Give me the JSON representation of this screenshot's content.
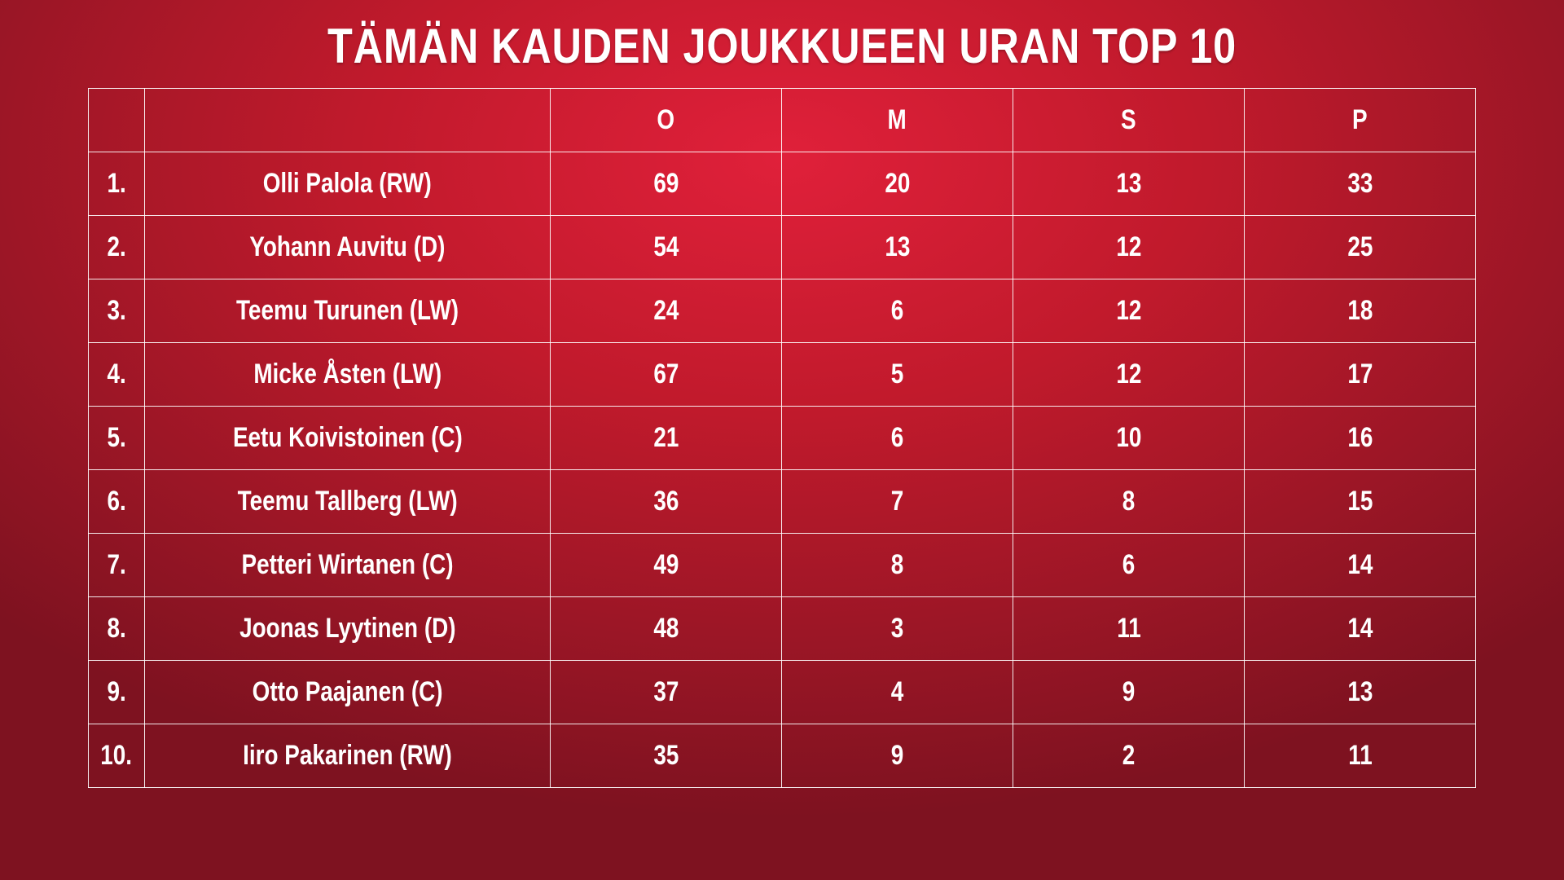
{
  "title": "TÄMÄN KAUDEN JOUKKUEEN URAN TOP 10",
  "table": {
    "columns": [
      "",
      "",
      "O",
      "M",
      "S",
      "P"
    ],
    "rows": [
      {
        "rank": "1.",
        "name": "Olli Palola (RW)",
        "o": "69",
        "m": "20",
        "s": "13",
        "p": "33"
      },
      {
        "rank": "2.",
        "name": "Yohann Auvitu (D)",
        "o": "54",
        "m": "13",
        "s": "12",
        "p": "25"
      },
      {
        "rank": "3.",
        "name": "Teemu Turunen (LW)",
        "o": "24",
        "m": "6",
        "s": "12",
        "p": "18"
      },
      {
        "rank": "4.",
        "name": "Micke Åsten (LW)",
        "o": "67",
        "m": "5",
        "s": "12",
        "p": "17"
      },
      {
        "rank": "5.",
        "name": "Eetu Koivistoinen (C)",
        "o": "21",
        "m": "6",
        "s": "10",
        "p": "16"
      },
      {
        "rank": "6.",
        "name": "Teemu Tallberg (LW)",
        "o": "36",
        "m": "7",
        "s": "8",
        "p": "15"
      },
      {
        "rank": "7.",
        "name": "Petteri Wirtanen (C)",
        "o": "49",
        "m": "8",
        "s": "6",
        "p": "14"
      },
      {
        "rank": "8.",
        "name": "Joonas Lyytinen (D)",
        "o": "48",
        "m": "3",
        "s": "11",
        "p": "14"
      },
      {
        "rank": "9.",
        "name": "Otto Paajanen (C)",
        "o": "37",
        "m": "4",
        "s": "9",
        "p": "13"
      },
      {
        "rank": "10.",
        "name": "Iiro Pakarinen (RW)",
        "o": "35",
        "m": "9",
        "s": "2",
        "p": "11"
      }
    ]
  },
  "colors": {
    "background": "#c11a2c",
    "text": "#ffffff",
    "grid": "#ffffff"
  }
}
